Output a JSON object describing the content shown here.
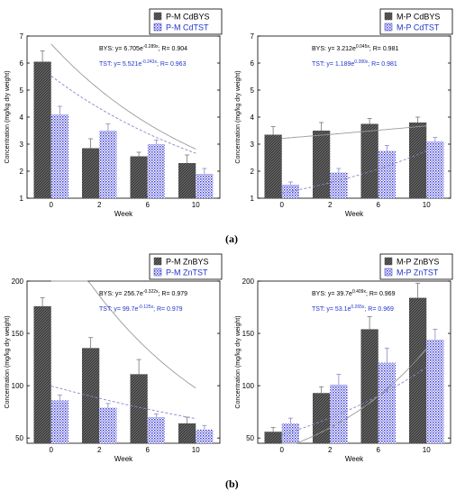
{
  "figure": {
    "labels": [
      "(a)",
      "(b)"
    ]
  },
  "chart_data": [
    {
      "type": "bar",
      "categories": [
        "0",
        "2",
        "6",
        "10"
      ],
      "xlabel": "Week",
      "ylabel": "Concentration (mg/kg dry weight)",
      "ylim": [
        1,
        7
      ],
      "yticks": [
        1,
        2,
        3,
        4,
        5,
        6,
        7
      ],
      "legend": "top-right",
      "series": [
        {
          "name": "P-M CdBYS",
          "values": [
            6.05,
            2.85,
            2.55,
            2.3
          ],
          "errors": [
            0.4,
            0.35,
            0.15,
            0.3
          ],
          "color": "#555555",
          "pattern": "hatch"
        },
        {
          "name": "P-M CdTST",
          "values": [
            4.1,
            3.5,
            3.0,
            1.9
          ],
          "errors": [
            0.3,
            0.25,
            0.15,
            0.2
          ],
          "color": "#3333cc",
          "pattern": "dots"
        }
      ],
      "equations": [
        {
          "prefix": "BYS: ",
          "base": "y= 6.705e",
          "exp": "-0.289x",
          "r": "; R= 0.904",
          "color": "#000000"
        },
        {
          "prefix": "TST: ",
          "base": "y= 5.521e",
          "exp": "-0.243x",
          "r": "; R= 0.963",
          "color": "#2233cc"
        }
      ],
      "fits": [
        {
          "a": 6.705,
          "b": -0.289,
          "series": 0
        },
        {
          "a": 5.521,
          "b": -0.243,
          "series": 1
        }
      ]
    },
    {
      "type": "bar",
      "categories": [
        "0",
        "2",
        "6",
        "10"
      ],
      "xlabel": "Week",
      "ylabel": "Concentration (mg/kg dry weight)",
      "ylim": [
        1,
        7
      ],
      "yticks": [
        1,
        2,
        3,
        4,
        5,
        6,
        7
      ],
      "legend": "top-right",
      "series": [
        {
          "name": "M-P CdBYS",
          "values": [
            3.35,
            3.5,
            3.75,
            3.8
          ],
          "errors": [
            0.3,
            0.3,
            0.2,
            0.2
          ],
          "color": "#555555",
          "pattern": "hatch"
        },
        {
          "name": "M-P CdTST",
          "values": [
            1.5,
            1.95,
            2.75,
            3.1
          ],
          "errors": [
            0.1,
            0.15,
            0.2,
            0.15
          ],
          "color": "#3333cc",
          "pattern": "dots"
        }
      ],
      "equations": [
        {
          "prefix": "BYS: ",
          "base": "y= 3.212e",
          "exp": "0.045x",
          "r": "; R= 0.981",
          "color": "#000000"
        },
        {
          "prefix": "TST: ",
          "base": "y= 1.189e",
          "exp": "0.280x",
          "r": "; R= 0.981",
          "color": "#2233cc"
        }
      ],
      "fits": [
        {
          "a": 3.212,
          "b": 0.045,
          "series": 0
        },
        {
          "a": 1.189,
          "b": 0.28,
          "series": 1
        }
      ]
    },
    {
      "type": "bar",
      "categories": [
        "0",
        "2",
        "6",
        "10"
      ],
      "xlabel": "Week",
      "ylabel": "Concentration (mg/kg dry weight)",
      "ylim": [
        45,
        200
      ],
      "yticks": [
        50,
        100,
        150,
        200
      ],
      "legend": "top-right",
      "series": [
        {
          "name": "P-M ZnBYS",
          "values": [
            176,
            136,
            111,
            64
          ],
          "errors": [
            8,
            10,
            14,
            6
          ],
          "color": "#555555",
          "pattern": "hatch"
        },
        {
          "name": "P-M ZnTST",
          "values": [
            86,
            79,
            70,
            58
          ],
          "errors": [
            5,
            4,
            3,
            4
          ],
          "color": "#3333cc",
          "pattern": "dots"
        }
      ],
      "equations": [
        {
          "prefix": "BYS: ",
          "base": "y= 256.7e",
          "exp": "-0.322x",
          "r": "; R= 0.979",
          "color": "#000000"
        },
        {
          "prefix": "TST: ",
          "base": "y= 99.7e",
          "exp": "-0.125x",
          "r": "; R= 0.979",
          "color": "#2233cc"
        }
      ],
      "fits": [
        {
          "a": 256.7,
          "b": -0.322,
          "series": 0
        },
        {
          "a": 99.7,
          "b": -0.125,
          "series": 1
        }
      ]
    },
    {
      "type": "bar",
      "categories": [
        "0",
        "2",
        "6",
        "10"
      ],
      "xlabel": "Week",
      "ylabel": "Concentration (mg/kg dry weight)",
      "ylim": [
        45,
        200
      ],
      "yticks": [
        50,
        100,
        150,
        200
      ],
      "legend": "top-right",
      "series": [
        {
          "name": "M-P ZnBYS",
          "values": [
            56,
            93,
            154,
            184
          ],
          "errors": [
            4,
            6,
            12,
            14
          ],
          "color": "#555555",
          "pattern": "hatch"
        },
        {
          "name": "M-P ZnTST",
          "values": [
            64,
            101,
            122,
            144
          ],
          "errors": [
            5,
            10,
            14,
            10
          ],
          "color": "#3333cc",
          "pattern": "dots"
        }
      ],
      "equations": [
        {
          "prefix": "BYS: ",
          "base": "y= 39.7e",
          "exp": "0.409x",
          "r": "; R= 0.969",
          "color": "#000000"
        },
        {
          "prefix": "TST: ",
          "base": "y= 53.1e",
          "exp": "0.265x",
          "r": "; R= 0.969",
          "color": "#2233cc"
        }
      ],
      "fits": [
        {
          "a": 39.7,
          "b": 0.409,
          "series": 0
        },
        {
          "a": 53.1,
          "b": 0.265,
          "series": 1
        }
      ]
    }
  ]
}
